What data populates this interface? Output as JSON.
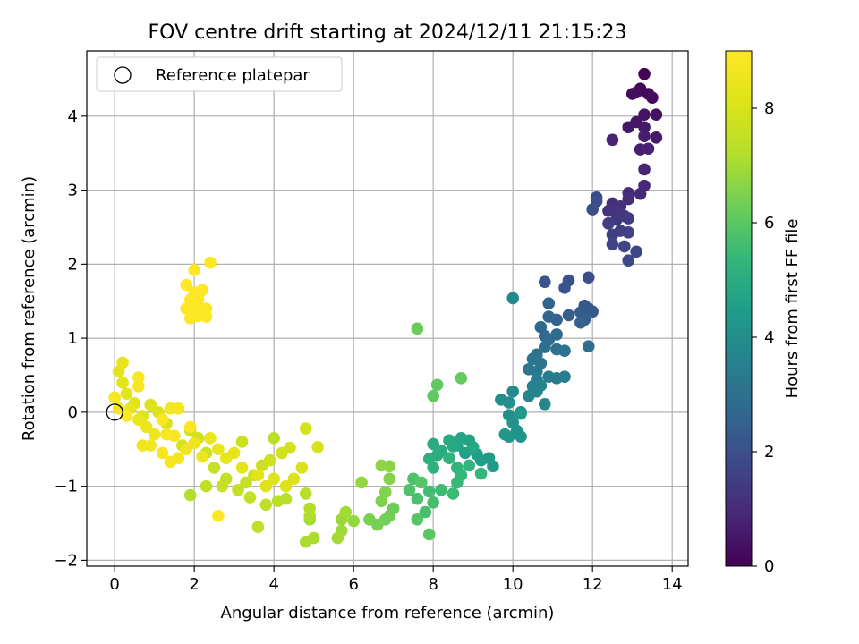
{
  "chart_data": {
    "type": "scatter",
    "title": "FOV centre drift starting at 2024/12/11 21:15:23",
    "xlabel": "Angular distance from reference (arcmin)",
    "ylabel": "Rotation from reference (arcmin)",
    "xlim": [
      -0.7,
      14.4
    ],
    "ylim": [
      -2.08,
      4.88
    ],
    "xticks": [
      0,
      2,
      4,
      6,
      8,
      10,
      12,
      14
    ],
    "yticks": [
      -2,
      -1,
      0,
      1,
      2,
      3,
      4
    ],
    "grid": true,
    "legend": {
      "position": "top-left",
      "entries": [
        "Reference platepar"
      ]
    },
    "reference_point": {
      "x": 0,
      "y": 0
    },
    "colorbar": {
      "label": "Hours from first FF file",
      "min": 0,
      "max": 9.0,
      "ticks": [
        0,
        2,
        4,
        6,
        8
      ],
      "colormap": "viridis"
    },
    "series": [
      {
        "color_by": "hours",
        "points": [
          [
            13.3,
            4.57,
            0.05
          ],
          [
            13.2,
            4.37,
            0.1
          ],
          [
            13.4,
            4.3,
            0.15
          ],
          [
            13.0,
            4.3,
            0.2
          ],
          [
            13.5,
            4.25,
            0.25
          ],
          [
            13.1,
            4.32,
            0.3
          ],
          [
            13.6,
            4.02,
            0.35
          ],
          [
            13.3,
            4.02,
            0.4
          ],
          [
            13.1,
            3.92,
            0.45
          ],
          [
            12.9,
            3.85,
            0.5
          ],
          [
            13.3,
            3.85,
            0.55
          ],
          [
            13.6,
            3.71,
            0.6
          ],
          [
            13.3,
            3.73,
            0.65
          ],
          [
            13.2,
            3.55,
            0.7
          ],
          [
            13.4,
            3.56,
            0.75
          ],
          [
            12.5,
            3.68,
            0.8
          ],
          [
            13.3,
            3.28,
            0.85
          ],
          [
            13.3,
            3.06,
            0.9
          ],
          [
            13.2,
            2.95,
            0.95
          ],
          [
            12.9,
            2.96,
            1.0
          ],
          [
            12.9,
            2.88,
            1.05
          ],
          [
            12.5,
            2.82,
            1.1
          ],
          [
            12.7,
            2.78,
            1.15
          ],
          [
            12.4,
            2.72,
            1.2
          ],
          [
            12.6,
            2.72,
            1.25
          ],
          [
            12.8,
            2.65,
            1.3
          ],
          [
            12.6,
            2.6,
            1.35
          ],
          [
            12.9,
            2.62,
            1.4
          ],
          [
            12.4,
            2.55,
            1.45
          ],
          [
            12.7,
            2.45,
            1.5
          ],
          [
            12.5,
            2.4,
            1.55
          ],
          [
            12.9,
            2.43,
            1.6
          ],
          [
            12.5,
            2.27,
            1.65
          ],
          [
            12.8,
            2.24,
            1.7
          ],
          [
            13.1,
            2.17,
            1.75
          ],
          [
            12.9,
            2.05,
            1.8
          ],
          [
            12.1,
            2.9,
            1.85
          ],
          [
            12.1,
            2.85,
            1.9
          ],
          [
            12.0,
            2.74,
            1.95
          ],
          [
            11.9,
            1.82,
            2.0
          ],
          [
            11.4,
            1.78,
            2.05
          ],
          [
            11.3,
            1.68,
            2.1
          ],
          [
            10.8,
            1.76,
            2.15
          ],
          [
            11.8,
            1.44,
            2.2
          ],
          [
            11.9,
            1.4,
            2.25
          ],
          [
            12.0,
            1.36,
            2.3
          ],
          [
            11.7,
            1.35,
            2.35
          ],
          [
            11.8,
            1.25,
            2.4
          ],
          [
            11.4,
            1.31,
            2.45
          ],
          [
            11.7,
            1.21,
            2.5
          ],
          [
            11.1,
            1.25,
            2.55
          ],
          [
            10.9,
            1.47,
            2.6
          ],
          [
            10.9,
            1.29,
            2.65
          ],
          [
            10.7,
            1.15,
            2.7
          ],
          [
            10.8,
            1.03,
            2.75
          ],
          [
            11.1,
            1.05,
            2.8
          ],
          [
            10.9,
            0.98,
            2.85
          ],
          [
            11.9,
            0.89,
            2.9
          ],
          [
            10.8,
            0.88,
            2.95
          ],
          [
            11.1,
            0.85,
            3.0
          ],
          [
            11.3,
            0.83,
            3.05
          ],
          [
            10.6,
            0.78,
            3.1
          ],
          [
            10.5,
            0.72,
            3.15
          ],
          [
            10.7,
            0.66,
            3.2
          ],
          [
            10.6,
            0.55,
            3.25
          ],
          [
            10.4,
            0.58,
            3.3
          ],
          [
            10.9,
            0.48,
            3.35
          ],
          [
            11.1,
            0.46,
            3.4
          ],
          [
            11.3,
            0.48,
            3.45
          ],
          [
            10.6,
            0.44,
            3.5
          ],
          [
            10.5,
            0.35,
            3.55
          ],
          [
            10.7,
            0.36,
            3.6
          ],
          [
            10.6,
            0.28,
            3.65
          ],
          [
            10.4,
            0.22,
            3.7
          ],
          [
            10.8,
            0.11,
            3.75
          ],
          [
            10.0,
            1.54,
            3.8
          ],
          [
            10.2,
            0.0,
            3.85
          ],
          [
            10.0,
            0.28,
            3.9
          ],
          [
            9.7,
            0.17,
            3.95
          ],
          [
            9.9,
            0.13,
            4.0
          ],
          [
            9.9,
            -0.04,
            4.05
          ],
          [
            10.0,
            -0.14,
            4.1
          ],
          [
            10.1,
            -0.25,
            4.15
          ],
          [
            10.2,
            -0.33,
            4.2
          ],
          [
            9.9,
            -0.33,
            4.25
          ],
          [
            9.8,
            -0.3,
            4.3
          ],
          [
            10.2,
            -0.02,
            4.35
          ],
          [
            9.4,
            -0.62,
            4.4
          ],
          [
            9.5,
            -0.73,
            4.45
          ],
          [
            9.1,
            -0.57,
            4.5
          ],
          [
            9.2,
            -0.65,
            4.55
          ],
          [
            8.8,
            -0.55,
            4.6
          ],
          [
            8.6,
            -0.45,
            4.65
          ],
          [
            8.9,
            -0.38,
            4.7
          ],
          [
            8.7,
            -0.35,
            4.75
          ],
          [
            9.0,
            -0.47,
            4.8
          ],
          [
            8.5,
            -0.46,
            4.85
          ],
          [
            8.4,
            -0.38,
            4.9
          ],
          [
            8.2,
            -0.52,
            4.95
          ],
          [
            8.0,
            -0.43,
            5.0
          ],
          [
            8.1,
            -0.58,
            5.05
          ],
          [
            7.9,
            -0.63,
            5.1
          ],
          [
            8.0,
            -0.75,
            5.15
          ],
          [
            8.4,
            -0.62,
            5.2
          ],
          [
            8.6,
            -0.75,
            5.25
          ],
          [
            8.9,
            -0.72,
            5.3
          ],
          [
            9.2,
            -0.83,
            5.35
          ],
          [
            8.7,
            -0.85,
            5.4
          ],
          [
            8.6,
            -0.95,
            5.45
          ],
          [
            8.5,
            -1.1,
            5.5
          ],
          [
            8.2,
            -1.05,
            5.55
          ],
          [
            7.9,
            -1.07,
            5.6
          ],
          [
            8.0,
            -1.22,
            5.65
          ],
          [
            7.8,
            -1.35,
            5.7
          ],
          [
            7.6,
            -1.17,
            5.75
          ],
          [
            7.5,
            -0.9,
            5.8
          ],
          [
            7.4,
            -1.05,
            5.85
          ],
          [
            7.7,
            -0.95,
            5.9
          ],
          [
            7.6,
            -1.45,
            5.95
          ],
          [
            7.9,
            -1.65,
            6.0
          ],
          [
            8.0,
            0.22,
            6.05
          ],
          [
            8.1,
            0.37,
            6.1
          ],
          [
            8.7,
            0.46,
            6.15
          ],
          [
            7.6,
            1.13,
            6.2
          ],
          [
            7.0,
            -1.3,
            6.25
          ],
          [
            6.9,
            -1.4,
            6.3
          ],
          [
            6.8,
            -1.45,
            6.35
          ],
          [
            6.6,
            -1.52,
            6.4
          ],
          [
            6.4,
            -1.45,
            6.45
          ],
          [
            6.7,
            -1.2,
            6.5
          ],
          [
            6.8,
            -1.08,
            6.55
          ],
          [
            6.9,
            -0.9,
            6.6
          ],
          [
            6.9,
            -0.73,
            6.65
          ],
          [
            6.7,
            -0.72,
            6.7
          ],
          [
            6.2,
            -0.95,
            6.75
          ],
          [
            6.0,
            -1.47,
            6.8
          ],
          [
            5.7,
            -1.45,
            6.85
          ],
          [
            5.7,
            -1.6,
            6.9
          ],
          [
            5.8,
            -1.35,
            6.95
          ],
          [
            5.6,
            -1.7,
            7.0
          ],
          [
            4.8,
            -1.75,
            7.05
          ],
          [
            5.0,
            -1.7,
            7.1
          ],
          [
            4.9,
            -1.4,
            7.15
          ],
          [
            4.9,
            -1.3,
            7.2
          ],
          [
            4.8,
            -1.1,
            7.25
          ],
          [
            4.3,
            -1.17,
            7.3
          ],
          [
            4.1,
            -1.2,
            7.35
          ],
          [
            3.8,
            -1.25,
            7.4
          ],
          [
            3.6,
            -1.55,
            7.45
          ],
          [
            3.4,
            -1.15,
            7.5
          ],
          [
            3.1,
            -1.05,
            7.55
          ],
          [
            3.3,
            -0.95,
            7.6
          ],
          [
            3.5,
            -0.85,
            7.65
          ],
          [
            3.7,
            -0.72,
            7.7
          ],
          [
            3.9,
            -0.65,
            7.75
          ],
          [
            4.2,
            -0.55,
            7.8
          ],
          [
            4.4,
            -0.48,
            7.85
          ],
          [
            4.8,
            -0.22,
            7.9
          ],
          [
            5.1,
            -0.47,
            7.95
          ],
          [
            4.7,
            -0.75,
            8.0
          ],
          [
            4.5,
            -0.9,
            8.05
          ],
          [
            4.3,
            -1.0,
            8.1
          ],
          [
            4.0,
            -0.9,
            8.15
          ],
          [
            3.8,
            -1.0,
            8.2
          ],
          [
            3.6,
            -0.85,
            8.25
          ],
          [
            3.2,
            -0.75,
            8.3
          ],
          [
            3.0,
            -0.55,
            8.35
          ],
          [
            2.8,
            -0.62,
            8.4
          ],
          [
            2.6,
            -0.5,
            8.45
          ],
          [
            2.4,
            -0.35,
            8.5
          ],
          [
            2.2,
            -0.6,
            8.55
          ],
          [
            2.0,
            -0.42,
            8.6
          ],
          [
            1.8,
            -0.5,
            8.65
          ],
          [
            1.6,
            -0.62,
            8.7
          ],
          [
            1.4,
            -0.67,
            8.75
          ],
          [
            1.2,
            -0.55,
            8.8
          ],
          [
            1.5,
            -0.32,
            8.85
          ],
          [
            1.9,
            -0.2,
            8.9
          ],
          [
            2.6,
            -1.4,
            8.95
          ]
        ]
      }
    ],
    "extra_points": [
      [
        2.8,
        -0.9,
        7.5
      ],
      [
        2.5,
        -0.75,
        7.6
      ],
      [
        2.3,
        -0.55,
        7.7
      ],
      [
        2.1,
        -0.35,
        7.8
      ],
      [
        1.9,
        -0.25,
        7.9
      ],
      [
        1.7,
        -0.45,
        7.95
      ],
      [
        1.3,
        -0.15,
        8.0
      ],
      [
        1.1,
        0.0,
        8.05
      ],
      [
        0.9,
        0.1,
        8.1
      ],
      [
        0.7,
        -0.05,
        8.15
      ],
      [
        0.5,
        0.12,
        8.2
      ],
      [
        0.3,
        0.25,
        8.25
      ],
      [
        0.2,
        0.4,
        8.3
      ],
      [
        0.1,
        0.55,
        8.35
      ],
      [
        0.2,
        0.67,
        8.4
      ],
      [
        0.4,
        0.05,
        8.45
      ],
      [
        0.6,
        -0.1,
        8.5
      ],
      [
        0.8,
        -0.2,
        8.55
      ],
      [
        1.0,
        -0.3,
        8.6
      ],
      [
        0.7,
        -0.45,
        8.65
      ],
      [
        0.9,
        -0.45,
        8.7
      ],
      [
        1.4,
        0.05,
        8.75
      ],
      [
        1.6,
        0.05,
        8.8
      ],
      [
        0.0,
        0.2,
        8.82
      ],
      [
        0.1,
        0.05,
        8.84
      ],
      [
        0.6,
        0.47,
        8.86
      ],
      [
        0.6,
        0.35,
        8.88
      ],
      [
        1.2,
        -0.1,
        8.9
      ],
      [
        1.3,
        -0.3,
        8.92
      ],
      [
        0.3,
        -0.05,
        8.94
      ],
      [
        1.9,
        -1.12,
        7.2
      ],
      [
        2.3,
        -1.0,
        7.4
      ],
      [
        2.7,
        -1.0,
        7.6
      ],
      [
        3.2,
        -0.4,
        7.7
      ],
      [
        4.0,
        -0.35,
        7.3
      ],
      [
        4.9,
        -1.45,
        7.0
      ],
      [
        2.0,
        1.92,
        9.0
      ],
      [
        2.4,
        2.02,
        9.0
      ],
      [
        1.8,
        1.72,
        9.0
      ],
      [
        2.0,
        1.62,
        9.0
      ],
      [
        2.2,
        1.65,
        9.0
      ],
      [
        1.9,
        1.52,
        9.0
      ],
      [
        2.1,
        1.45,
        9.0
      ],
      [
        2.3,
        1.4,
        9.0
      ],
      [
        1.8,
        1.4,
        9.0
      ],
      [
        2.0,
        1.35,
        9.0
      ],
      [
        1.9,
        1.27,
        9.0
      ],
      [
        2.1,
        1.3,
        9.0
      ],
      [
        2.3,
        1.29,
        9.0
      ],
      [
        2.1,
        1.53,
        9.0
      ]
    ]
  }
}
